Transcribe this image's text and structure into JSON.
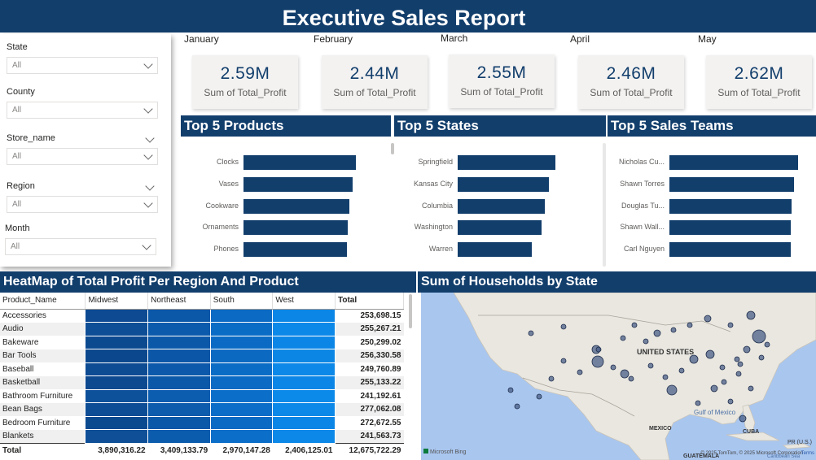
{
  "report": {
    "title": "Executive Sales Report"
  },
  "slicers": [
    {
      "label": "State",
      "value": "All"
    },
    {
      "label": "County",
      "value": "All"
    },
    {
      "label": "Store_name",
      "value": "All"
    },
    {
      "label": "Region",
      "value": "All"
    },
    {
      "label": "Month",
      "value": "All"
    }
  ],
  "kpis": [
    {
      "month": "January",
      "value": "2.59M",
      "caption": "Sum of Total_Profit"
    },
    {
      "month": "February",
      "value": "2.44M",
      "caption": "Sum of Total_Profit"
    },
    {
      "month": "March",
      "value": "2.55M",
      "caption": "Sum of Total_Profit"
    },
    {
      "month": "April",
      "value": "2.46M",
      "caption": "Sum of Total_Profit"
    },
    {
      "month": "May",
      "value": "2.62M",
      "caption": "Sum of Total_Profit"
    }
  ],
  "top_products": {
    "title": "Top 5 Products",
    "items": [
      {
        "label": "Clocks",
        "value": 1
      },
      {
        "label": "Vases",
        "value": 0.97
      },
      {
        "label": "Cookware",
        "value": 0.94
      },
      {
        "label": "Ornaments",
        "value": 0.93
      },
      {
        "label": "Phones",
        "value": 0.92
      }
    ]
  },
  "top_states": {
    "title": "Top 5 States",
    "items": [
      {
        "label": "Springfield",
        "value": 1
      },
      {
        "label": "Kansas City",
        "value": 0.93
      },
      {
        "label": "Columbia",
        "value": 0.89
      },
      {
        "label": "Washington",
        "value": 0.86
      },
      {
        "label": "Warren",
        "value": 0.76
      }
    ]
  },
  "top_teams": {
    "title": "Top 5 Sales Teams",
    "items": [
      {
        "label": "Nicholas Cu...",
        "value": 1
      },
      {
        "label": "Shawn Torres",
        "value": 0.97
      },
      {
        "label": "Douglas Tu...",
        "value": 0.95
      },
      {
        "label": "Shawn Wall...",
        "value": 0.94
      },
      {
        "label": "Carl Nguyen",
        "value": 0.94
      }
    ]
  },
  "heatmap": {
    "title": "HeatMap of Total Profit Per Region And Product",
    "columns": [
      "Product_Name",
      "Midwest",
      "Northeast",
      "South",
      "West",
      "Total"
    ],
    "rows": [
      {
        "name": "Accessories",
        "total": "253,698.15",
        "shades": [
          "#0d4a92",
          "#0b57a8",
          "#0b6ac4",
          "#0c86e6"
        ]
      },
      {
        "name": "Audio",
        "total": "255,267.21",
        "shades": [
          "#0e4e96",
          "#0c5aac",
          "#0b6cc6",
          "#0c88e8"
        ]
      },
      {
        "name": "Bakeware",
        "total": "250,299.02",
        "shades": [
          "#0c4a90",
          "#0b58a8",
          "#0b6bc4",
          "#0c86e6"
        ]
      },
      {
        "name": "Bar Tools",
        "total": "256,330.58",
        "shades": [
          "#0b478c",
          "#0b56a6",
          "#0b69c2",
          "#0c86e4"
        ]
      },
      {
        "name": "Baseball",
        "total": "249,760.89",
        "shades": [
          "#0d4b93",
          "#0c58aa",
          "#0b6cc6",
          "#0c88e8"
        ]
      },
      {
        "name": "Basketball",
        "total": "255,133.22",
        "shades": [
          "#0c498f",
          "#0b57a8",
          "#0b6ac4",
          "#0c86e6"
        ]
      },
      {
        "name": "Bathroom Furniture",
        "total": "241,192.61",
        "shades": [
          "#0e519b",
          "#0c5cb0",
          "#0b6fca",
          "#0c8aea"
        ]
      },
      {
        "name": "Bean Bags",
        "total": "277,062.08",
        "shades": [
          "#0d4d95",
          "#0c5bad",
          "#0b6dc8",
          "#0c89e8"
        ]
      },
      {
        "name": "Bedroom Furniture",
        "total": "272,672.55",
        "shades": [
          "#0c4a90",
          "#0b58a8",
          "#0b6ac4",
          "#0c86e6"
        ]
      },
      {
        "name": "Blankets",
        "total": "241,563.73",
        "shades": [
          "#0e4f98",
          "#0c5cae",
          "#0b6ec8",
          "#0c89e8"
        ]
      }
    ],
    "totals": {
      "label": "Total",
      "values": [
        "3,890,316.22",
        "3,409,133.79",
        "2,970,147.28",
        "2,406,125.01",
        "12,675,722.29"
      ]
    }
  },
  "map": {
    "title": "Sum of Households by State",
    "labels": {
      "country": "UNITED STATES",
      "gulf": "Gulf of\nMexico",
      "mexico": "MEXICO",
      "cuba": "CUBA",
      "guatemala": "GUATEMALA",
      "pr": "PR\n(U.S.)",
      "caribbean": "Caribbean Sea"
    },
    "attribution": "© 2025 TomTom, © 2025 Microsoft Corporation",
    "terms": "Terms",
    "logo": "Microsoft Bing"
  },
  "colors": {
    "header_bg": "#123e6c",
    "bar": "#123e6c",
    "map_water": "#a9c6ef",
    "map_land": "#e9e7e0",
    "bubble": "#4a5f88"
  }
}
